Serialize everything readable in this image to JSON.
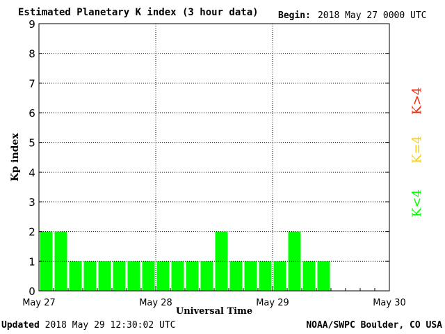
{
  "header": {
    "title": "Estimated Planetary K index (3 hour data)",
    "begin_label": "Begin:",
    "begin_value": "2018 May 27 0000 UTC"
  },
  "footer": {
    "updated_label": "Updated",
    "updated_value": "2018 May 29 12:30:02 UTC",
    "source": "NOAA/SWPC Boulder, CO USA"
  },
  "legend": [
    {
      "label": "K>4",
      "color": "#ff2200"
    },
    {
      "label": "K=4",
      "color": "#ffcc00"
    },
    {
      "label": "K<4",
      "color": "#00ff00"
    }
  ],
  "chart_data": {
    "type": "bar",
    "title": "Estimated Planetary K index (3 hour data)",
    "xlabel": "Universal Time",
    "ylabel": "Kp index",
    "ylim": [
      0,
      9
    ],
    "yticks": [
      "0",
      "1",
      "2",
      "3",
      "4",
      "5",
      "6",
      "7",
      "8",
      "9"
    ],
    "xticks": [
      "May 27",
      "May 28",
      "May 29",
      "May 30"
    ],
    "slots_per_day": 8,
    "grid": true,
    "bar_color": "#00ff00",
    "values": [
      2,
      2,
      1,
      1,
      1,
      1,
      1,
      1,
      1,
      1,
      1,
      1,
      2,
      1,
      1,
      1,
      1,
      2,
      1,
      1
    ]
  }
}
